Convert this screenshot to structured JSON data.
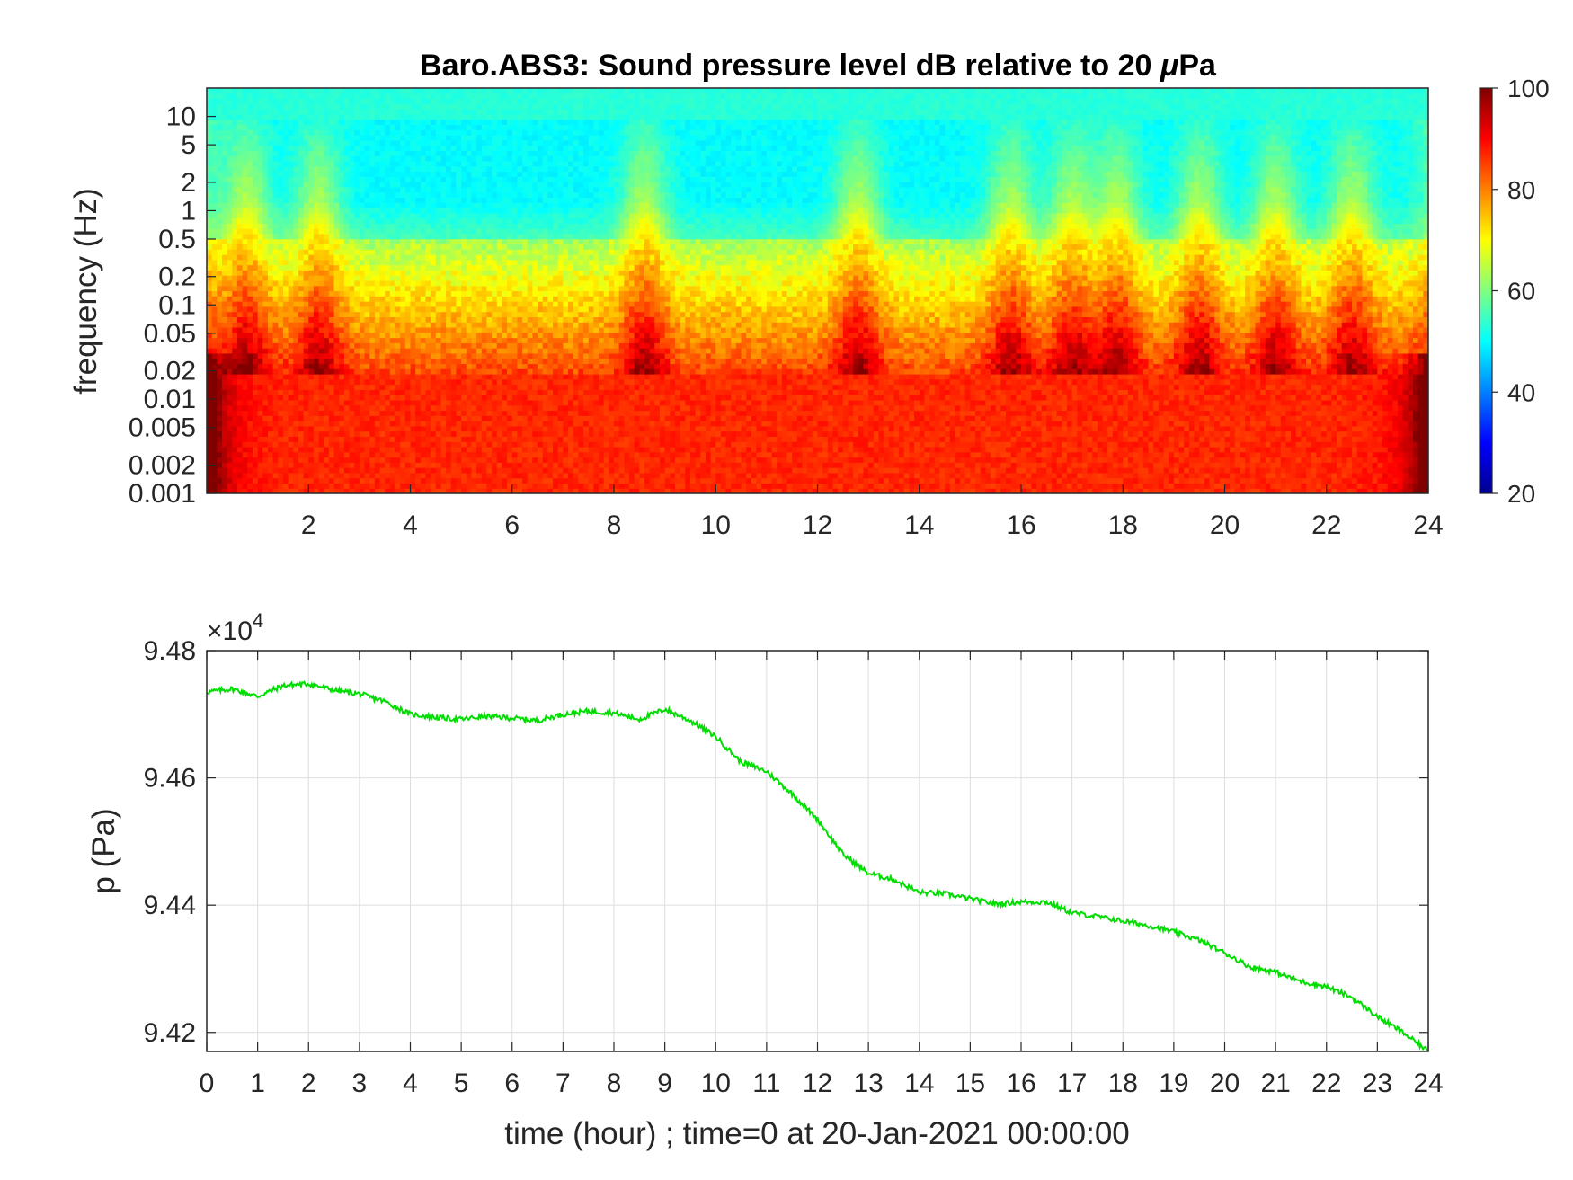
{
  "chart_data": [
    {
      "type": "heatmap",
      "title": "Baro.ABS3: Sound pressure level dB relative to 20 μPa",
      "title_parts": [
        "Baro.ABS3: Sound pressure level dB relative to 20 ",
        "μ",
        "Pa"
      ],
      "xlabel": "",
      "ylabel": "frequency (Hz)",
      "y_scale": "log",
      "xlim": [
        0,
        24
      ],
      "ylim": [
        0.001,
        20
      ],
      "x_ticks": [
        "2",
        "4",
        "6",
        "8",
        "10",
        "12",
        "14",
        "16",
        "18",
        "20",
        "22",
        "24"
      ],
      "x_tick_values": [
        2,
        4,
        6,
        8,
        10,
        12,
        14,
        16,
        18,
        20,
        22,
        24
      ],
      "y_ticks": [
        "0.001",
        "0.002",
        "0.005",
        "0.01",
        "0.02",
        "0.05",
        "0.1",
        "0.2",
        "0.5",
        "1",
        "2",
        "5",
        "10"
      ],
      "y_tick_values": [
        0.001,
        0.002,
        0.005,
        0.01,
        0.02,
        0.05,
        0.1,
        0.2,
        0.5,
        1,
        2,
        5,
        10
      ],
      "colormap": "jet",
      "colorbar": {
        "range": [
          20,
          100
        ],
        "ticks": [
          "20",
          "40",
          "60",
          "80",
          "100"
        ],
        "tick_values": [
          20,
          40,
          60,
          80,
          100
        ]
      },
      "z_description_levels": {
        "low_frequency_band_dB": 85,
        "mid_frequency_band_dB": 70,
        "high_frequency_band_dB": 50
      },
      "energy_bursts_hours": [
        0.8,
        2.2,
        8.6,
        12.8,
        15.8,
        17.0,
        17.9,
        19.5,
        21.0,
        22.5
      ]
    },
    {
      "type": "line",
      "title": "",
      "xlabel": "time (hour) ; time=0 at 20-Jan-2021 00:00:00",
      "ylabel": "p (Pa)",
      "xlim": [
        0,
        24
      ],
      "ylim": [
        94170,
        94800
      ],
      "exponent_label": {
        "base": "×10",
        "power": "4"
      },
      "x_ticks": [
        "0",
        "1",
        "2",
        "3",
        "4",
        "5",
        "6",
        "7",
        "8",
        "9",
        "10",
        "11",
        "12",
        "13",
        "14",
        "15",
        "16",
        "17",
        "18",
        "19",
        "20",
        "21",
        "22",
        "23",
        "24"
      ],
      "x_tick_values": [
        0,
        1,
        2,
        3,
        4,
        5,
        6,
        7,
        8,
        9,
        10,
        11,
        12,
        13,
        14,
        15,
        16,
        17,
        18,
        19,
        20,
        21,
        22,
        23,
        24
      ],
      "y_ticks": [
        "9.42",
        "9.44",
        "9.46",
        "9.48"
      ],
      "y_tick_values": [
        94200,
        94400,
        94600,
        94800
      ],
      "grid": true,
      "line_color": "#00dd00",
      "series": [
        {
          "x": [
            0,
            0.5,
            1.0,
            1.5,
            2.0,
            2.5,
            3.0,
            3.5,
            4.0,
            4.5,
            5.0,
            5.5,
            6.0,
            6.5,
            7.0,
            7.5,
            8.0,
            8.5,
            9.0,
            9.5,
            10.0,
            10.5,
            11.0,
            11.5,
            12.0,
            12.5,
            13.0,
            13.5,
            14.0,
            14.5,
            15.0,
            15.5,
            16.0,
            16.5,
            17.0,
            17.5,
            18.0,
            18.5,
            19.0,
            19.5,
            20.0,
            20.5,
            21.0,
            21.5,
            22.0,
            22.5,
            23.0,
            23.5,
            24.0
          ],
          "y": [
            94735,
            94740,
            94728,
            94745,
            94748,
            94738,
            94732,
            94720,
            94700,
            94695,
            94692,
            94697,
            94694,
            94690,
            94700,
            94705,
            94702,
            94692,
            94708,
            94690,
            94665,
            94625,
            94610,
            94575,
            94535,
            94480,
            94450,
            94440,
            94420,
            94418,
            94410,
            94402,
            94405,
            94405,
            94388,
            94382,
            94375,
            94368,
            94358,
            94345,
            94325,
            94303,
            94295,
            94280,
            94272,
            94255,
            94225,
            94200,
            94170
          ]
        }
      ]
    }
  ]
}
